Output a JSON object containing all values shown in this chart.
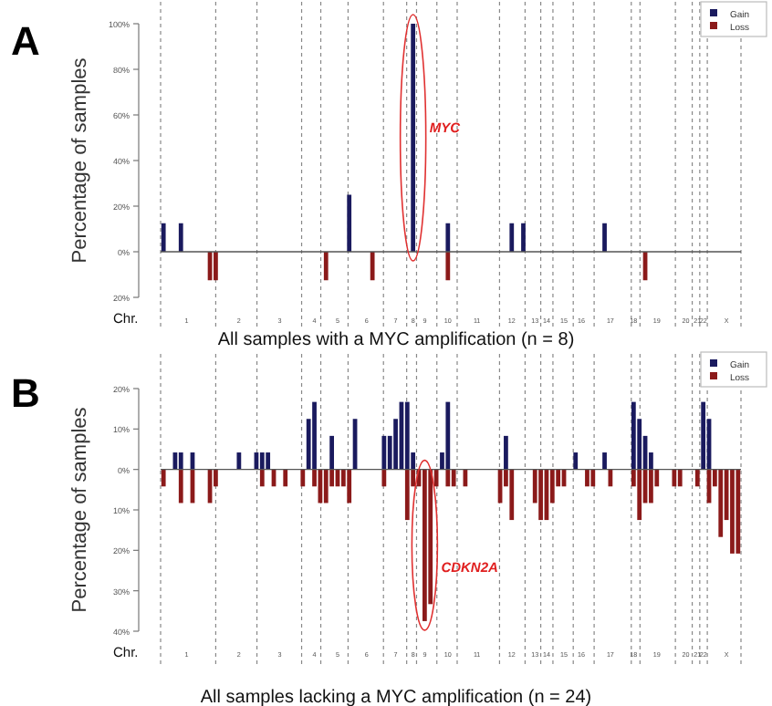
{
  "chart_data": [
    {
      "type": "bar",
      "title": "A",
      "xlabel": "All samples with a MYC amplification  (n = 8)",
      "ylabel": "Percentage of samples",
      "annotations": [
        "Chr.",
        {
          "text": "MYC",
          "x": "8",
          "y": 55
        }
      ],
      "categories": [
        null,
        null,
        null,
        null,
        "1",
        null,
        null,
        null,
        null,
        null,
        null,
        null,
        null,
        "2",
        null,
        null,
        null,
        null,
        null,
        null,
        "3",
        null,
        null,
        null,
        null,
        null,
        "4",
        null,
        null,
        null,
        "5",
        null,
        null,
        null,
        null,
        "6",
        null,
        null,
        null,
        null,
        "7",
        null,
        null,
        "8",
        null,
        "9",
        null,
        null,
        null,
        "10",
        null,
        null,
        null,
        null,
        "11",
        null,
        null,
        null,
        null,
        null,
        "12",
        null,
        null,
        null,
        "13",
        null,
        "14",
        null,
        null,
        "15",
        null,
        null,
        "16",
        null,
        null,
        null,
        null,
        "17",
        null,
        null,
        null,
        "18",
        null,
        null,
        null,
        "19",
        null,
        null,
        null,
        null,
        "20",
        null,
        "21",
        "22",
        null,
        null,
        null,
        "X",
        null,
        null
      ],
      "ylim": [
        -20,
        100
      ],
      "yticks": [
        {
          "value": -20,
          "label": "20%"
        },
        {
          "value": 0,
          "label": "0%"
        },
        {
          "value": 20,
          "label": "20%"
        },
        {
          "value": 40,
          "label": "40%"
        },
        {
          "value": 60,
          "label": "60%"
        },
        {
          "value": 80,
          "label": "80%"
        },
        {
          "value": 100,
          "label": "100%"
        }
      ],
      "legend": "top right",
      "series": [
        {
          "name": "Gain",
          "color": "#1a1a5e",
          "values": [
            12.5,
            null,
            null,
            12.5,
            null,
            null,
            null,
            null,
            null,
            null,
            null,
            null,
            null,
            null,
            null,
            null,
            null,
            null,
            null,
            null,
            null,
            null,
            null,
            null,
            null,
            null,
            null,
            null,
            null,
            null,
            null,
            null,
            25,
            null,
            null,
            null,
            null,
            null,
            null,
            null,
            null,
            null,
            null,
            100,
            null,
            null,
            null,
            null,
            null,
            12.5,
            null,
            null,
            null,
            null,
            null,
            null,
            null,
            null,
            null,
            null,
            12.5,
            null,
            12.5,
            null,
            null,
            null,
            null,
            null,
            null,
            null,
            null,
            null,
            null,
            null,
            null,
            null,
            12.5,
            null,
            null,
            null,
            null,
            null,
            null,
            null,
            null,
            null,
            null,
            null,
            null,
            null,
            null,
            null,
            null,
            null,
            null,
            null,
            null,
            null,
            null,
            null
          ]
        },
        {
          "name": "Loss",
          "color": "#8b1a1a",
          "values": [
            null,
            null,
            null,
            null,
            null,
            null,
            null,
            null,
            -12.5,
            -12.5,
            null,
            null,
            null,
            null,
            null,
            null,
            null,
            null,
            null,
            null,
            null,
            null,
            null,
            null,
            null,
            null,
            null,
            null,
            -12.5,
            null,
            null,
            null,
            null,
            null,
            null,
            null,
            -12.5,
            null,
            null,
            null,
            null,
            null,
            null,
            null,
            null,
            null,
            null,
            null,
            null,
            -12.5,
            null,
            null,
            null,
            null,
            null,
            null,
            null,
            null,
            null,
            null,
            null,
            null,
            null,
            null,
            null,
            null,
            null,
            null,
            null,
            null,
            null,
            null,
            null,
            null,
            null,
            null,
            null,
            null,
            null,
            null,
            null,
            null,
            null,
            -12.5,
            null,
            null,
            null,
            null,
            null,
            null,
            null,
            null,
            null,
            null,
            null,
            null,
            null,
            null,
            null,
            null
          ]
        }
      ]
    },
    {
      "type": "bar",
      "title": "B",
      "xlabel": "All samples lacking a MYC amplification  (n = 24)",
      "ylabel": "Percentage of samples",
      "annotations": [
        "Chr.",
        {
          "text": "CDKN2A",
          "x": "9",
          "y": -24
        }
      ],
      "categories": [
        null,
        null,
        null,
        null,
        "1",
        null,
        null,
        null,
        null,
        null,
        null,
        null,
        null,
        "2",
        null,
        null,
        null,
        null,
        null,
        null,
        "3",
        null,
        null,
        null,
        null,
        null,
        "4",
        null,
        null,
        null,
        "5",
        null,
        null,
        null,
        null,
        "6",
        null,
        null,
        null,
        null,
        "7",
        null,
        null,
        "8",
        null,
        "9",
        null,
        null,
        null,
        "10",
        null,
        null,
        null,
        null,
        "11",
        null,
        null,
        null,
        null,
        null,
        "12",
        null,
        null,
        null,
        "13",
        null,
        "14",
        null,
        null,
        "15",
        null,
        null,
        "16",
        null,
        null,
        null,
        null,
        "17",
        null,
        null,
        null,
        "18",
        null,
        null,
        null,
        "19",
        null,
        null,
        null,
        null,
        "20",
        null,
        "21",
        "22",
        null,
        null,
        null,
        "X",
        null,
        null
      ],
      "ylim": [
        -40,
        20
      ],
      "yticks": [
        {
          "value": -40,
          "label": "40%"
        },
        {
          "value": -30,
          "label": "30%"
        },
        {
          "value": -20,
          "label": "20%"
        },
        {
          "value": -10,
          "label": "10%"
        },
        {
          "value": 0,
          "label": "0%"
        },
        {
          "value": 10,
          "label": "10%"
        },
        {
          "value": 20,
          "label": "20%"
        }
      ],
      "legend": "top right",
      "series": [
        {
          "name": "Gain",
          "color": "#1a1a5e",
          "values": [
            null,
            null,
            4.2,
            4.2,
            null,
            4.2,
            null,
            null,
            null,
            null,
            null,
            null,
            null,
            4.2,
            null,
            null,
            4.2,
            4.2,
            4.2,
            null,
            null,
            null,
            null,
            null,
            null,
            12.5,
            16.7,
            null,
            null,
            8.3,
            null,
            null,
            null,
            12.5,
            null,
            null,
            null,
            null,
            8.3,
            8.3,
            12.5,
            16.7,
            16.7,
            4.2,
            null,
            null,
            null,
            null,
            4.2,
            16.7,
            null,
            null,
            null,
            null,
            null,
            null,
            null,
            null,
            null,
            8.3,
            null,
            null,
            null,
            null,
            null,
            null,
            null,
            null,
            null,
            null,
            null,
            4.2,
            null,
            null,
            null,
            null,
            4.2,
            null,
            null,
            null,
            null,
            16.7,
            12.5,
            8.3,
            4.2,
            null,
            null,
            null,
            null,
            null,
            null,
            null,
            null,
            16.7,
            12.5,
            null,
            null,
            null,
            null,
            null
          ]
        },
        {
          "name": "Loss",
          "color": "#8b1a1a",
          "values": [
            -4.2,
            null,
            null,
            -8.3,
            null,
            -8.3,
            null,
            null,
            -8.3,
            -4.2,
            null,
            null,
            null,
            null,
            null,
            null,
            null,
            -4.2,
            null,
            -4.2,
            null,
            -4.2,
            null,
            null,
            -4.2,
            null,
            -4.2,
            -8.3,
            -8.3,
            -4.2,
            -4.2,
            -4.2,
            -8.3,
            null,
            null,
            null,
            null,
            null,
            -4.2,
            null,
            null,
            null,
            -12.5,
            -4.2,
            -4.2,
            -37.5,
            -33.3,
            -4.2,
            null,
            -4.2,
            -4.2,
            null,
            -4.2,
            null,
            null,
            null,
            null,
            null,
            -8.3,
            -4.2,
            -12.5,
            null,
            null,
            null,
            -8.3,
            -12.5,
            -12.5,
            -8.3,
            -4.2,
            -4.2,
            null,
            null,
            null,
            -4.2,
            -4.2,
            null,
            null,
            -4.2,
            null,
            null,
            null,
            -4.2,
            -12.5,
            -8.3,
            -8.3,
            -4.2,
            null,
            null,
            -4.2,
            -4.2,
            null,
            null,
            -4.2,
            null,
            -8.3,
            -4.2,
            -16.7,
            -12.5,
            -20.8,
            -20.8
          ]
        }
      ]
    }
  ]
}
